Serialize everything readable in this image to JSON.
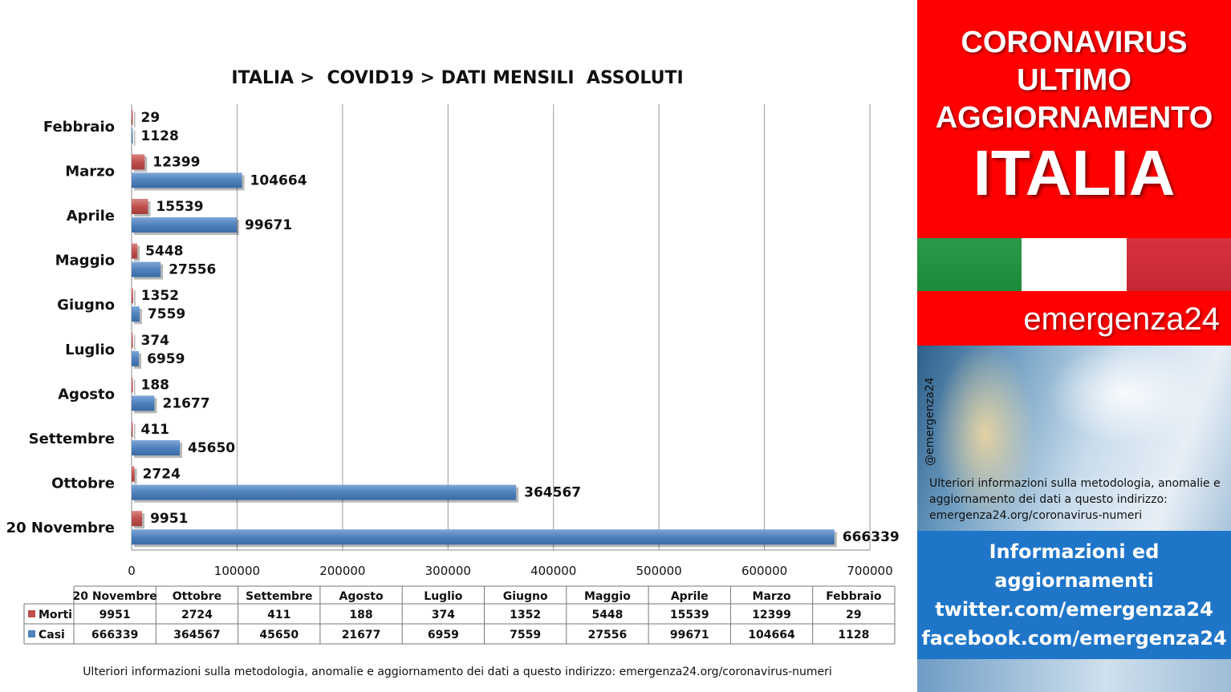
{
  "chart_data": {
    "type": "bar",
    "orientation": "horizontal",
    "title": "ITALIA >  COVID19 > DATI MENSILI  ASSOLUTI",
    "categories": [
      "Febbraio",
      "Marzo",
      "Aprile",
      "Maggio",
      "Giugno",
      "Luglio",
      "Agosto",
      "Settembre",
      "Ottobre",
      "20 Novembre"
    ],
    "series": [
      {
        "name": "Morti",
        "color": "#c0504d",
        "values": [
          29,
          12399,
          15539,
          5448,
          1352,
          374,
          188,
          411,
          2724,
          9951
        ]
      },
      {
        "name": "Casi",
        "color": "#4f81bd",
        "values": [
          1128,
          104664,
          99671,
          27556,
          7559,
          6959,
          21677,
          45650,
          364567,
          666339
        ]
      }
    ],
    "xlim": [
      0,
      700000
    ],
    "xticks": [
      "0",
      "100000",
      "200000",
      "300000",
      "400000",
      "500000",
      "600000",
      "700000"
    ],
    "grid": true,
    "legend": "data-table-below",
    "table_columns": [
      "20 Novembre",
      "Ottobre",
      "Settembre",
      "Agosto",
      "Luglio",
      "Giugno",
      "Maggio",
      "Aprile",
      "Marzo",
      "Febbraio"
    ]
  },
  "footnote": "Ulteriori informazioni sulla metodologia, anomalie e aggiornamento dei dati a questo indirizzo: emergenza24.org/coronavirus-numeri",
  "panel": {
    "headline": [
      "CORONAVIRUS",
      "ULTIMO",
      "AGGIORNAMENTO"
    ],
    "country": "ITALIA",
    "brand": "emergenza24",
    "handle": "@emergenza24",
    "note": "Ulteriori informazioni sulla metodologia, anomalie e aggiornamento dei dati a questo indirizzo: emergenza24.org/coronavirus-numeri",
    "info": [
      "Informazioni ed",
      "aggiornamenti",
      "twitter.com/emergenza24",
      "facebook.com/emergenza24"
    ]
  }
}
